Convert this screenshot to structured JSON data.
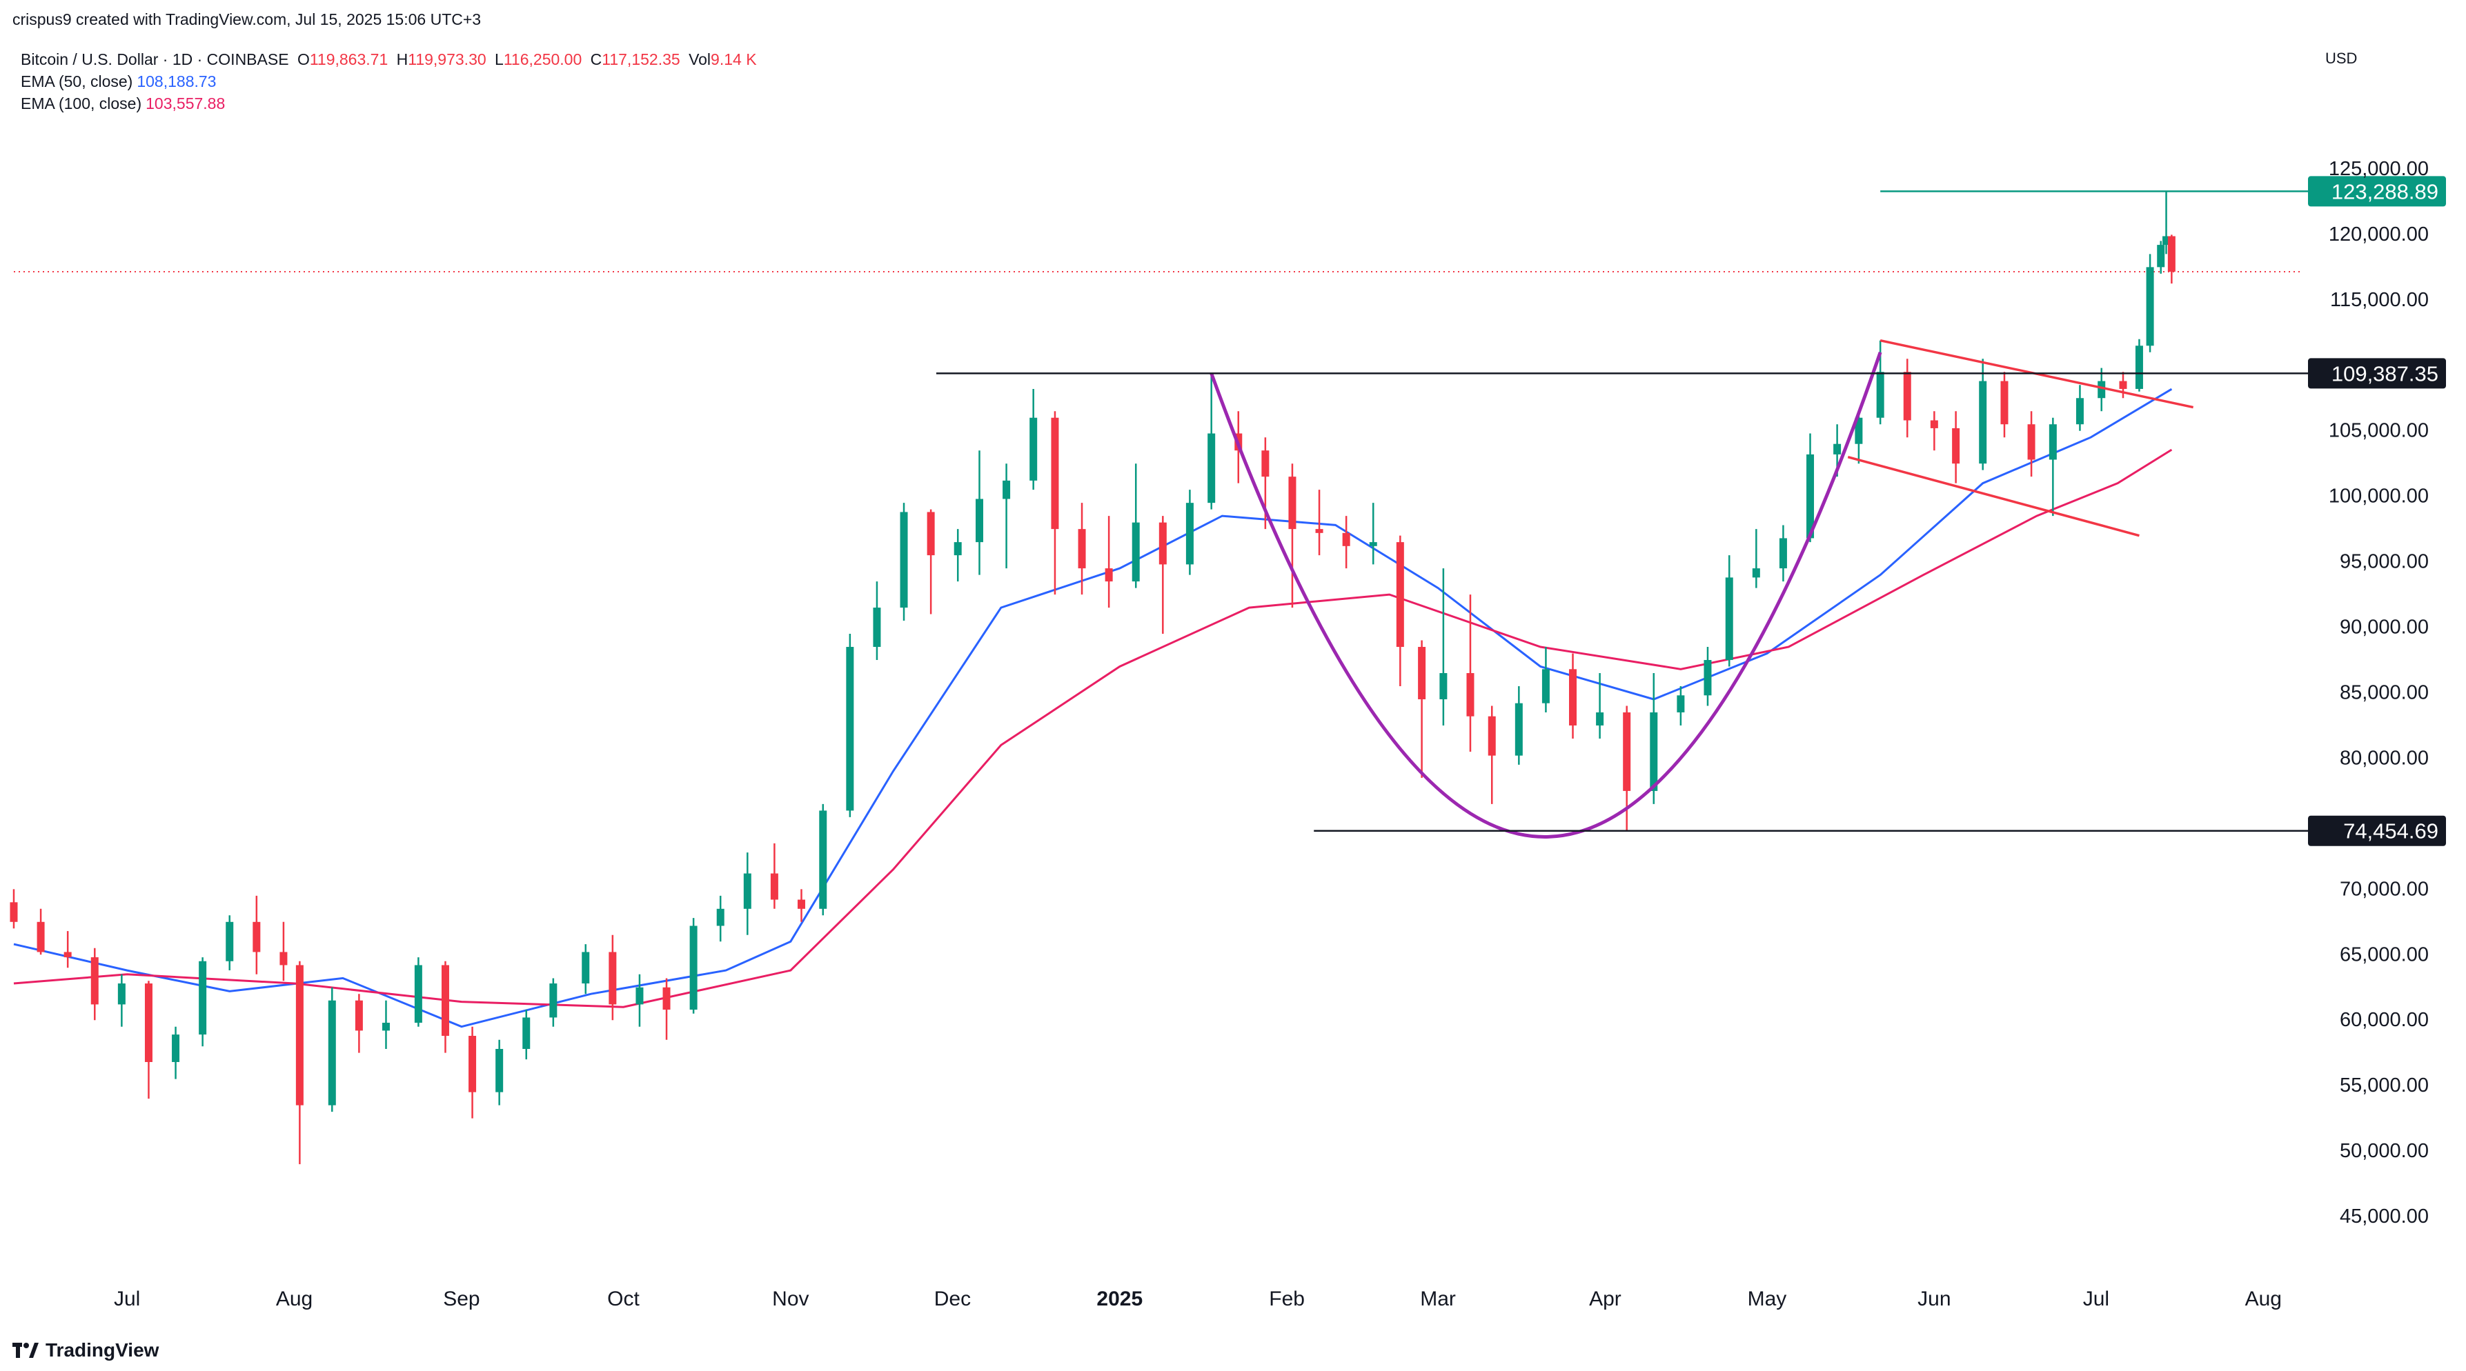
{
  "attribution": "crispus9 created with TradingView.com, Jul 15, 2025 15:06 UTC+3",
  "symbol_line": {
    "title": "Bitcoin / U.S. Dollar · 1D · COINBASE",
    "open_label": "O",
    "open": "119,863.71",
    "high_label": "H",
    "high": "119,973.30",
    "low_label": "L",
    "low": "116,250.00",
    "close_label": "C",
    "close": "117,152.35",
    "vol_label": "Vol",
    "vol": "9.14 K"
  },
  "indicators": [
    {
      "label": "EMA (50, close)",
      "value": "108,188.73",
      "color": "#2962ff"
    },
    {
      "label": "EMA (100, close)",
      "value": "103,557.88",
      "color": "#e91e63"
    }
  ],
  "currency": "USD",
  "brand": "TradingView",
  "colors": {
    "up": "#089981",
    "down": "#f23645",
    "ema50": "#2962ff",
    "ema100": "#e91e63",
    "cup": "#9c27b0",
    "flag": "#f23645",
    "peak": "#089981"
  },
  "chart_data": {
    "type": "candlestick",
    "ylim": [
      41000,
      130000
    ],
    "y_ticks": [
      "125,000.00",
      "120,000.00",
      "115,000.00",
      "105,000.00",
      "100,000.00",
      "95,000.00",
      "90,000.00",
      "85,000.00",
      "80,000.00",
      "70,000.00",
      "65,000.00",
      "60,000.00",
      "55,000.00",
      "50,000.00",
      "45,000.00"
    ],
    "x_ticks": [
      "Jul",
      "Aug",
      "Sep",
      "Oct",
      "Nov",
      "Dec",
      "2025",
      "Feb",
      "Mar",
      "Apr",
      "May",
      "Jun",
      "Jul",
      "Aug"
    ],
    "x_tick_dates": [
      "2024-07-01",
      "2024-08-01",
      "2024-09-01",
      "2024-10-01",
      "2024-11-01",
      "2024-12-01",
      "2025-01-01",
      "2025-02-01",
      "2025-03-01",
      "2025-04-01",
      "2025-05-01",
      "2025-06-01",
      "2025-07-01",
      "2025-08-01"
    ],
    "x_range": [
      "2024-06-10",
      "2025-08-08"
    ],
    "price_levels": [
      {
        "label": "123,288.89",
        "value": 123288.89,
        "color": "#089981",
        "from": "2025-05-22"
      },
      {
        "label": "109,387.35",
        "value": 109387.35,
        "color": "#131722",
        "from": "2024-11-28"
      },
      {
        "label": "74,454.69",
        "value": 74454.69,
        "color": "#131722",
        "from": "2025-02-06"
      }
    ],
    "last_close": 117152.35,
    "series": [
      {
        "name": "EMA (50, close)",
        "points": [
          [
            "2024-06-10",
            65800
          ],
          [
            "2024-07-01",
            63800
          ],
          [
            "2024-07-20",
            62200
          ],
          [
            "2024-08-10",
            63200
          ],
          [
            "2024-09-01",
            59500
          ],
          [
            "2024-09-25",
            62000
          ],
          [
            "2024-10-20",
            63800
          ],
          [
            "2024-11-01",
            66000
          ],
          [
            "2024-11-20",
            79000
          ],
          [
            "2024-12-10",
            91500
          ],
          [
            "2025-01-01",
            94500
          ],
          [
            "2025-01-20",
            98500
          ],
          [
            "2025-02-10",
            97800
          ],
          [
            "2025-03-01",
            93000
          ],
          [
            "2025-03-20",
            87000
          ],
          [
            "2025-04-10",
            84500
          ],
          [
            "2025-05-01",
            88000
          ],
          [
            "2025-05-22",
            94000
          ],
          [
            "2025-06-10",
            101000
          ],
          [
            "2025-06-30",
            104500
          ],
          [
            "2025-07-15",
            108188.73
          ]
        ]
      },
      {
        "name": "EMA (100, close)",
        "points": [
          [
            "2024-06-10",
            62800
          ],
          [
            "2024-07-01",
            63500
          ],
          [
            "2024-08-01",
            62800
          ],
          [
            "2024-09-01",
            61400
          ],
          [
            "2024-10-01",
            61000
          ],
          [
            "2024-11-01",
            63800
          ],
          [
            "2024-11-20",
            71500
          ],
          [
            "2024-12-10",
            81000
          ],
          [
            "2025-01-01",
            87000
          ],
          [
            "2025-01-25",
            91500
          ],
          [
            "2025-02-20",
            92500
          ],
          [
            "2025-03-20",
            88500
          ],
          [
            "2025-04-15",
            86800
          ],
          [
            "2025-05-05",
            88500
          ],
          [
            "2025-05-30",
            94000
          ],
          [
            "2025-06-20",
            98500
          ],
          [
            "2025-07-05",
            101000
          ],
          [
            "2025-07-15",
            103557.88
          ]
        ]
      }
    ],
    "ohlc": [
      [
        "2024-06-10",
        69000,
        70000,
        67000,
        67500
      ],
      [
        "2024-06-15",
        67500,
        68500,
        65000,
        65200
      ],
      [
        "2024-06-20",
        65200,
        66800,
        64000,
        64800
      ],
      [
        "2024-06-25",
        64800,
        65500,
        60000,
        61200
      ],
      [
        "2024-06-30",
        61200,
        63500,
        59500,
        62800
      ],
      [
        "2024-07-05",
        62800,
        63000,
        54000,
        56800
      ],
      [
        "2024-07-10",
        56800,
        59500,
        55500,
        58900
      ],
      [
        "2024-07-15",
        58900,
        64800,
        58000,
        64500
      ],
      [
        "2024-07-20",
        64500,
        68000,
        63800,
        67500
      ],
      [
        "2024-07-25",
        67500,
        69500,
        63500,
        65200
      ],
      [
        "2024-07-30",
        65200,
        67500,
        63000,
        64200
      ],
      [
        "2024-08-02",
        64200,
        64500,
        49000,
        53500
      ],
      [
        "2024-08-08",
        53500,
        62500,
        53000,
        61500
      ],
      [
        "2024-08-13",
        61500,
        62000,
        57500,
        59200
      ],
      [
        "2024-08-18",
        59200,
        61500,
        57800,
        59800
      ],
      [
        "2024-08-24",
        59800,
        64800,
        59500,
        64200
      ],
      [
        "2024-08-29",
        64200,
        64500,
        57500,
        58800
      ],
      [
        "2024-09-03",
        58800,
        59500,
        52500,
        54500
      ],
      [
        "2024-09-08",
        54500,
        58500,
        53500,
        57800
      ],
      [
        "2024-09-13",
        57800,
        60800,
        57000,
        60200
      ],
      [
        "2024-09-18",
        60200,
        63200,
        59500,
        62800
      ],
      [
        "2024-09-24",
        62800,
        65800,
        62000,
        65200
      ],
      [
        "2024-09-29",
        65200,
        66500,
        60000,
        61200
      ],
      [
        "2024-10-04",
        61200,
        63500,
        59500,
        62500
      ],
      [
        "2024-10-09",
        62500,
        63200,
        58500,
        60800
      ],
      [
        "2024-10-14",
        60800,
        67800,
        60500,
        67200
      ],
      [
        "2024-10-19",
        67200,
        69500,
        66000,
        68500
      ],
      [
        "2024-10-24",
        68500,
        72800,
        66500,
        71200
      ],
      [
        "2024-10-29",
        71200,
        73500,
        68500,
        69200
      ],
      [
        "2024-11-03",
        69200,
        70000,
        67500,
        68500
      ],
      [
        "2024-11-07",
        68500,
        76500,
        68000,
        76000
      ],
      [
        "2024-11-12",
        76000,
        89500,
        75500,
        88500
      ],
      [
        "2024-11-17",
        88500,
        93500,
        87500,
        91500
      ],
      [
        "2024-11-22",
        91500,
        99500,
        90500,
        98800
      ],
      [
        "2024-11-27",
        98800,
        99000,
        91000,
        95500
      ],
      [
        "2024-12-02",
        95500,
        97500,
        93500,
        96500
      ],
      [
        "2024-12-06",
        96500,
        103500,
        94000,
        99800
      ],
      [
        "2024-12-11",
        99800,
        102500,
        94500,
        101200
      ],
      [
        "2024-12-16",
        101200,
        108200,
        100500,
        106000
      ],
      [
        "2024-12-20",
        106000,
        106500,
        92500,
        97500
      ],
      [
        "2024-12-25",
        97500,
        99500,
        92500,
        94500
      ],
      [
        "2024-12-30",
        94500,
        98500,
        91500,
        93500
      ],
      [
        "2025-01-04",
        93500,
        102500,
        93000,
        98000
      ],
      [
        "2025-01-09",
        98000,
        98500,
        89500,
        94800
      ],
      [
        "2025-01-14",
        94800,
        100500,
        94000,
        99500
      ],
      [
        "2025-01-18",
        99500,
        109387,
        99000,
        104800
      ],
      [
        "2025-01-23",
        104800,
        106500,
        101000,
        103500
      ],
      [
        "2025-01-28",
        103500,
        104500,
        97500,
        101500
      ],
      [
        "2025-02-02",
        101500,
        102500,
        91500,
        97500
      ],
      [
        "2025-02-07",
        97500,
        100500,
        95500,
        97200
      ],
      [
        "2025-02-12",
        97200,
        98500,
        94500,
        96200
      ],
      [
        "2025-02-17",
        96200,
        99500,
        94800,
        96500
      ],
      [
        "2025-02-22",
        96500,
        97000,
        85500,
        88500
      ],
      [
        "2025-02-26",
        88500,
        89000,
        78500,
        84500
      ],
      [
        "2025-03-02",
        84500,
        94500,
        82500,
        86500
      ],
      [
        "2025-03-07",
        86500,
        92500,
        80500,
        83200
      ],
      [
        "2025-03-11",
        83200,
        84000,
        76500,
        80200
      ],
      [
        "2025-03-16",
        80200,
        85500,
        79500,
        84200
      ],
      [
        "2025-03-21",
        84200,
        88500,
        83500,
        86800
      ],
      [
        "2025-03-26",
        86800,
        88000,
        81500,
        82500
      ],
      [
        "2025-03-31",
        82500,
        86500,
        81500,
        83500
      ],
      [
        "2025-04-05",
        83500,
        84000,
        74454,
        77500
      ],
      [
        "2025-04-10",
        77500,
        86500,
        76500,
        83500
      ],
      [
        "2025-04-15",
        83500,
        85500,
        82500,
        84800
      ],
      [
        "2025-04-20",
        84800,
        88500,
        84000,
        87500
      ],
      [
        "2025-04-24",
        87500,
        95500,
        87000,
        93800
      ],
      [
        "2025-04-29",
        93800,
        97500,
        93000,
        94500
      ],
      [
        "2025-05-04",
        94500,
        97800,
        93500,
        96800
      ],
      [
        "2025-05-09",
        96800,
        104800,
        96500,
        103200
      ],
      [
        "2025-05-14",
        103200,
        105500,
        101500,
        104000
      ],
      [
        "2025-05-18",
        104000,
        106500,
        102500,
        106000
      ],
      [
        "2025-05-22",
        106000,
        111900,
        105500,
        109500
      ],
      [
        "2025-05-27",
        109500,
        110500,
        104500,
        105800
      ],
      [
        "2025-06-01",
        105800,
        106500,
        103500,
        105200
      ],
      [
        "2025-06-05",
        105200,
        106500,
        101000,
        102500
      ],
      [
        "2025-06-10",
        102500,
        110500,
        102000,
        108800
      ],
      [
        "2025-06-14",
        108800,
        109500,
        104500,
        105500
      ],
      [
        "2025-06-19",
        105500,
        106500,
        101500,
        102800
      ],
      [
        "2025-06-23",
        102800,
        106000,
        98500,
        105500
      ],
      [
        "2025-06-28",
        105500,
        108500,
        105000,
        107500
      ],
      [
        "2025-07-02",
        107500,
        109800,
        106500,
        108800
      ],
      [
        "2025-07-06",
        108800,
        109500,
        107500,
        108200
      ],
      [
        "2025-07-09",
        108200,
        112000,
        108000,
        111500
      ],
      [
        "2025-07-11",
        111500,
        118500,
        111000,
        117500
      ],
      [
        "2025-07-13",
        117500,
        119500,
        117000,
        119200
      ],
      [
        "2025-07-14",
        119200,
        123288.89,
        118500,
        119863.71
      ],
      [
        "2025-07-15",
        119863.71,
        119973.3,
        116250,
        117152.35
      ]
    ]
  }
}
